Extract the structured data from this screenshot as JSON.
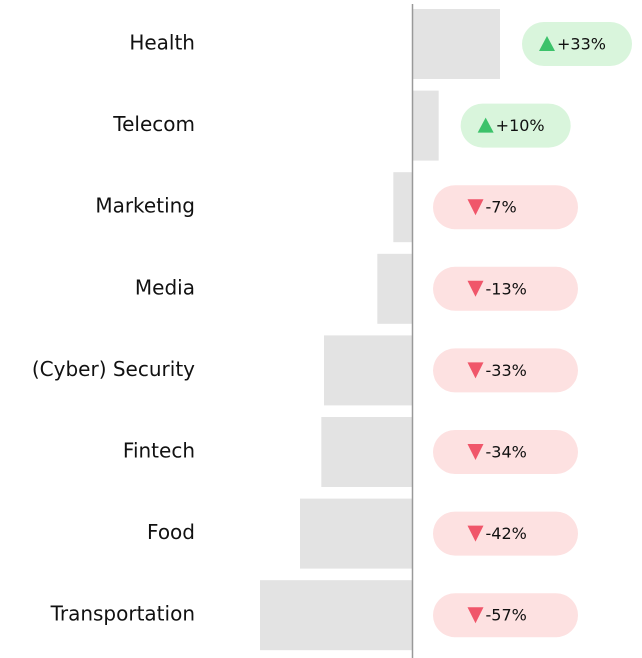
{
  "chart_data": {
    "type": "diverging-bar",
    "categories": [
      "Health",
      "Telecom",
      "Marketing",
      "Media",
      "(Cyber) Security",
      "Fintech",
      "Food",
      "Transportation"
    ],
    "values": [
      33,
      10,
      -7,
      -13,
      -33,
      -34,
      -42,
      -57
    ],
    "value_labels": [
      "+33%",
      "+10%",
      "-7%",
      "-13%",
      "-33%",
      "-34%",
      "-42%",
      "-57%"
    ],
    "color": "#e3e3e3"
  }
}
